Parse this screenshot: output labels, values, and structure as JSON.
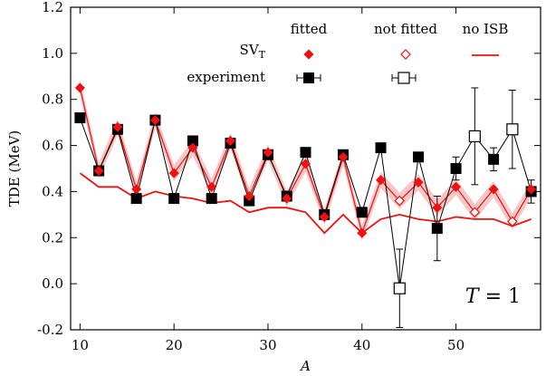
{
  "chart_data": {
    "type": "line",
    "xlabel": "A",
    "ylabel": "TDE (MeV)",
    "xlim": [
      9,
      59
    ],
    "ylim": [
      -0.2,
      1.2
    ],
    "x_ticks": [
      10,
      20,
      30,
      40,
      50
    ],
    "y_ticks": [
      -0.2,
      0.0,
      0.2,
      0.4,
      0.6,
      0.8,
      1.0,
      1.2
    ],
    "y_tick_labels": [
      "-0.2",
      "0.0",
      "0.2",
      "0.4",
      "0.6",
      "0.8",
      "1.0",
      "1.2"
    ],
    "legend": {
      "placement": "top-right",
      "col_headers": [
        "fitted",
        "not fitted",
        "no ISB"
      ],
      "row_sv_label": "SV",
      "row_sv_sub": "T",
      "row_exp_label": "experiment"
    },
    "annotation": {
      "lhs": "T",
      "rhs": " = 1"
    },
    "colors": {
      "sv": "#ee1111",
      "band": "#f7c6c6",
      "experiment": "#000000"
    },
    "series": [
      {
        "legend_label": "experiment",
        "points": [
          {
            "x": 10,
            "y": 0.72,
            "err": 0,
            "fitted": true
          },
          {
            "x": 12,
            "y": 0.49,
            "err": 0,
            "fitted": true
          },
          {
            "x": 14,
            "y": 0.67,
            "err": 0,
            "fitted": true
          },
          {
            "x": 16,
            "y": 0.37,
            "err": 0,
            "fitted": true
          },
          {
            "x": 18,
            "y": 0.71,
            "err": 0,
            "fitted": true
          },
          {
            "x": 20,
            "y": 0.37,
            "err": 0,
            "fitted": true
          },
          {
            "x": 22,
            "y": 0.62,
            "err": 0,
            "fitted": true
          },
          {
            "x": 24,
            "y": 0.37,
            "err": 0,
            "fitted": true
          },
          {
            "x": 26,
            "y": 0.61,
            "err": 0,
            "fitted": true
          },
          {
            "x": 28,
            "y": 0.36,
            "err": 0,
            "fitted": true
          },
          {
            "x": 30,
            "y": 0.56,
            "err": 0,
            "fitted": true
          },
          {
            "x": 32,
            "y": 0.38,
            "err": 0,
            "fitted": true
          },
          {
            "x": 34,
            "y": 0.57,
            "err": 0,
            "fitted": true
          },
          {
            "x": 36,
            "y": 0.3,
            "err": 0,
            "fitted": true
          },
          {
            "x": 38,
            "y": 0.56,
            "err": 0,
            "fitted": true
          },
          {
            "x": 40,
            "y": 0.31,
            "err": 0,
            "fitted": true
          },
          {
            "x": 42,
            "y": 0.59,
            "err": 0,
            "fitted": true
          },
          {
            "x": 44,
            "y": -0.02,
            "err": 0.17,
            "fitted": false
          },
          {
            "x": 46,
            "y": 0.55,
            "err": 0,
            "fitted": true
          },
          {
            "x": 48,
            "y": 0.24,
            "err": 0.14,
            "fitted": true
          },
          {
            "x": 50,
            "y": 0.5,
            "err": 0.05,
            "fitted": true
          },
          {
            "x": 52,
            "y": 0.64,
            "err": 0.21,
            "fitted": false
          },
          {
            "x": 54,
            "y": 0.54,
            "err": 0.05,
            "fitted": true
          },
          {
            "x": 56,
            "y": 0.67,
            "err": 0.17,
            "fitted": false
          },
          {
            "x": 58,
            "y": 0.4,
            "err": 0.05,
            "fitted": true
          }
        ]
      },
      {
        "legend_label": "SV_T",
        "band_halfwidth": 0.035,
        "points": [
          {
            "x": 10,
            "y": 0.85,
            "fitted": true
          },
          {
            "x": 12,
            "y": 0.49,
            "fitted": true
          },
          {
            "x": 14,
            "y": 0.68,
            "fitted": true
          },
          {
            "x": 16,
            "y": 0.41,
            "fitted": true
          },
          {
            "x": 18,
            "y": 0.71,
            "fitted": true
          },
          {
            "x": 20,
            "y": 0.48,
            "fitted": true
          },
          {
            "x": 22,
            "y": 0.59,
            "fitted": true
          },
          {
            "x": 24,
            "y": 0.42,
            "fitted": true
          },
          {
            "x": 26,
            "y": 0.62,
            "fitted": true
          },
          {
            "x": 28,
            "y": 0.38,
            "fitted": true
          },
          {
            "x": 30,
            "y": 0.57,
            "fitted": true
          },
          {
            "x": 32,
            "y": 0.37,
            "fitted": true
          },
          {
            "x": 34,
            "y": 0.52,
            "fitted": true
          },
          {
            "x": 36,
            "y": 0.29,
            "fitted": true
          },
          {
            "x": 38,
            "y": 0.55,
            "fitted": true
          },
          {
            "x": 40,
            "y": 0.22,
            "fitted": true
          },
          {
            "x": 42,
            "y": 0.45,
            "fitted": true
          },
          {
            "x": 44,
            "y": 0.36,
            "fitted": false
          },
          {
            "x": 46,
            "y": 0.44,
            "fitted": true
          },
          {
            "x": 48,
            "y": 0.33,
            "fitted": true
          },
          {
            "x": 50,
            "y": 0.42,
            "fitted": true
          },
          {
            "x": 52,
            "y": 0.31,
            "fitted": false
          },
          {
            "x": 54,
            "y": 0.41,
            "fitted": true
          },
          {
            "x": 56,
            "y": 0.27,
            "fitted": false
          },
          {
            "x": 58,
            "y": 0.41,
            "fitted": true
          }
        ]
      },
      {
        "legend_label": "no ISB",
        "x": [
          10,
          12,
          14,
          16,
          18,
          20,
          22,
          24,
          26,
          28,
          30,
          32,
          34,
          36,
          38,
          40,
          42,
          44,
          46,
          48,
          50,
          52,
          54,
          56,
          58
        ],
        "y": [
          0.48,
          0.42,
          0.42,
          0.37,
          0.4,
          0.38,
          0.37,
          0.35,
          0.36,
          0.31,
          0.33,
          0.33,
          0.31,
          0.22,
          0.3,
          0.22,
          0.28,
          0.3,
          0.28,
          0.27,
          0.29,
          0.28,
          0.28,
          0.25,
          0.28
        ]
      }
    ]
  }
}
